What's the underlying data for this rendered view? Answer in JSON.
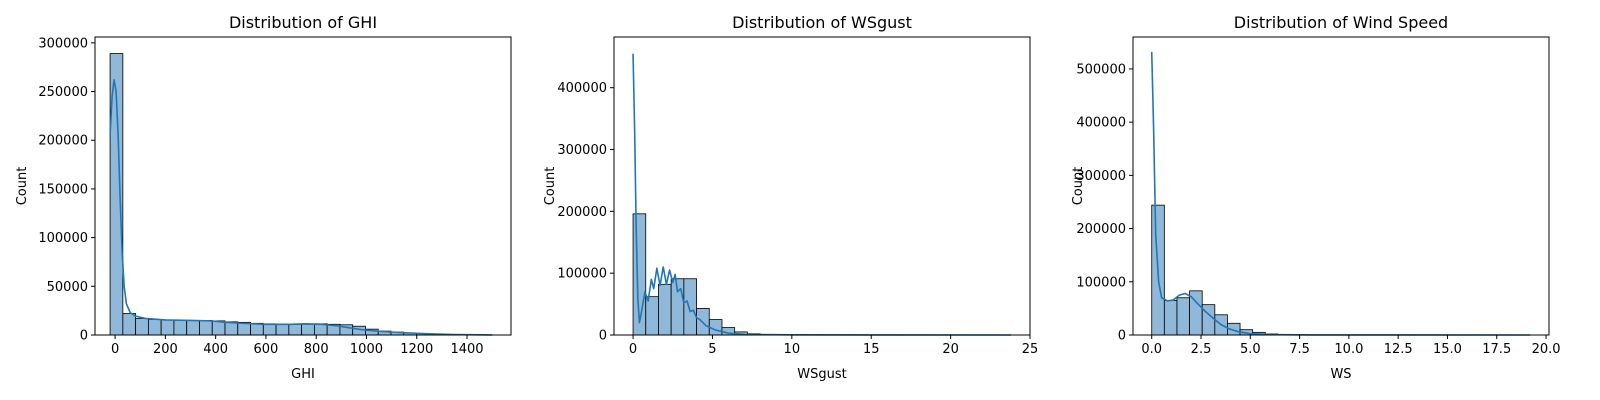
{
  "chart_data": [
    {
      "type": "bar",
      "title": "Distribution of GHI",
      "xlabel": "GHI",
      "ylabel": "Count",
      "xlim": [
        -80,
        1575
      ],
      "ylim": [
        0,
        306000
      ],
      "xticks": [
        0,
        200,
        400,
        600,
        800,
        1000,
        1200,
        1400
      ],
      "yticks": [
        0,
        50000,
        100000,
        150000,
        200000,
        250000,
        300000
      ],
      "bin_start": -20,
      "bin_width": 50.8,
      "counts": [
        289000,
        22000,
        17000,
        16000,
        15500,
        15000,
        15000,
        15000,
        14500,
        13500,
        13000,
        12000,
        11500,
        11000,
        11000,
        11000,
        11500,
        11000,
        10500,
        9000,
        6000,
        4000,
        3000,
        2000,
        1500,
        1000,
        500,
        300,
        150,
        50
      ],
      "kde": [
        [
          -20,
          205000
        ],
        [
          -12,
          245000
        ],
        [
          -4,
          262000
        ],
        [
          4,
          250000
        ],
        [
          12,
          205000
        ],
        [
          20,
          140000
        ],
        [
          28,
          85000
        ],
        [
          36,
          50000
        ],
        [
          45,
          32000
        ],
        [
          60,
          23000
        ],
        [
          80,
          19500
        ],
        [
          120,
          17000
        ],
        [
          200,
          15500
        ],
        [
          300,
          15000
        ],
        [
          380,
          14500
        ],
        [
          440,
          13000
        ],
        [
          520,
          11800
        ],
        [
          600,
          11000
        ],
        [
          700,
          11000
        ],
        [
          760,
          11500
        ],
        [
          820,
          11000
        ],
        [
          880,
          9500
        ],
        [
          930,
          7500
        ],
        [
          980,
          5500
        ],
        [
          1050,
          3800
        ],
        [
          1150,
          2300
        ],
        [
          1250,
          1200
        ],
        [
          1350,
          500
        ],
        [
          1450,
          150
        ],
        [
          1500,
          50
        ]
      ],
      "bar_fill": "#8fb8d9",
      "kde_color": "#1f77b4"
    },
    {
      "type": "bar",
      "title": "Distribution of WSgust",
      "xlabel": "WSgust",
      "ylabel": "Count",
      "xlim": [
        -1.2,
        25.0
      ],
      "ylim": [
        0,
        482000
      ],
      "xticks": [
        0,
        5,
        10,
        15,
        20,
        25
      ],
      "yticks": [
        0,
        100000,
        200000,
        300000,
        400000
      ],
      "bin_start": 0,
      "bin_width": 0.8,
      "counts": [
        196000,
        62000,
        82000,
        91000,
        91000,
        43000,
        25000,
        12000,
        5000,
        2000,
        900,
        500,
        300,
        200,
        150,
        100,
        80,
        60,
        40,
        30,
        20,
        15,
        10,
        5,
        3,
        2,
        1,
        1,
        1,
        1
      ],
      "kde": [
        [
          0,
          455000
        ],
        [
          0.1,
          330000
        ],
        [
          0.2,
          170000
        ],
        [
          0.3,
          60000
        ],
        [
          0.4,
          20000
        ],
        [
          0.55,
          40000
        ],
        [
          0.75,
          70000
        ],
        [
          0.95,
          55000
        ],
        [
          1.15,
          90000
        ],
        [
          1.3,
          75000
        ],
        [
          1.5,
          108000
        ],
        [
          1.7,
          80000
        ],
        [
          1.9,
          110000
        ],
        [
          2.1,
          82000
        ],
        [
          2.3,
          105000
        ],
        [
          2.5,
          85000
        ],
        [
          2.65,
          98000
        ],
        [
          2.8,
          70000
        ],
        [
          3.0,
          75000
        ],
        [
          3.2,
          52000
        ],
        [
          3.4,
          55000
        ],
        [
          3.6,
          38000
        ],
        [
          3.8,
          40000
        ],
        [
          4.0,
          28000
        ],
        [
          4.2,
          25000
        ],
        [
          4.6,
          15000
        ],
        [
          5.2,
          8000
        ],
        [
          6.0,
          3000
        ],
        [
          7.0,
          1000
        ],
        [
          10.0,
          300
        ],
        [
          15.0,
          100
        ],
        [
          23.8,
          20
        ]
      ],
      "bar_fill": "#8fb8d9",
      "kde_color": "#1f77b4"
    },
    {
      "type": "bar",
      "title": "Distribution of Wind Speed",
      "xlabel": "WS",
      "ylabel": "Count",
      "xlim": [
        -0.95,
        20.15
      ],
      "ylim": [
        0,
        560000
      ],
      "xticks": [
        0.0,
        2.5,
        5.0,
        7.5,
        10.0,
        12.5,
        15.0,
        17.5,
        20.0
      ],
      "xtick_labels": [
        "0.0",
        "2.5",
        "5.0",
        "7.5",
        "10.0",
        "12.5",
        "15.0",
        "17.5",
        "20.0"
      ],
      "yticks": [
        0,
        100000,
        200000,
        300000,
        400000,
        500000
      ],
      "bin_start": 0,
      "bin_width": 0.64,
      "counts": [
        244000,
        65000,
        70000,
        83000,
        57000,
        38000,
        22000,
        10000,
        5000,
        2000,
        800,
        400,
        250,
        150,
        100,
        80,
        60,
        40,
        30,
        20,
        15,
        10,
        5,
        3,
        2,
        1,
        1,
        1,
        1,
        1
      ],
      "kde": [
        [
          0,
          532000
        ],
        [
          0.1,
          380000
        ],
        [
          0.2,
          190000
        ],
        [
          0.35,
          100000
        ],
        [
          0.5,
          70000
        ],
        [
          0.8,
          64000
        ],
        [
          1.1,
          66000
        ],
        [
          1.4,
          75000
        ],
        [
          1.7,
          78000
        ],
        [
          2.0,
          72000
        ],
        [
          2.3,
          60000
        ],
        [
          2.7,
          45000
        ],
        [
          3.1,
          32000
        ],
        [
          3.5,
          20000
        ],
        [
          3.9,
          12000
        ],
        [
          4.4,
          6000
        ],
        [
          5.0,
          2500
        ],
        [
          6.0,
          800
        ],
        [
          8.0,
          200
        ],
        [
          12.0,
          50
        ],
        [
          19.2,
          10
        ]
      ],
      "bar_fill": "#8fb8d9",
      "kde_color": "#1f77b4"
    }
  ]
}
